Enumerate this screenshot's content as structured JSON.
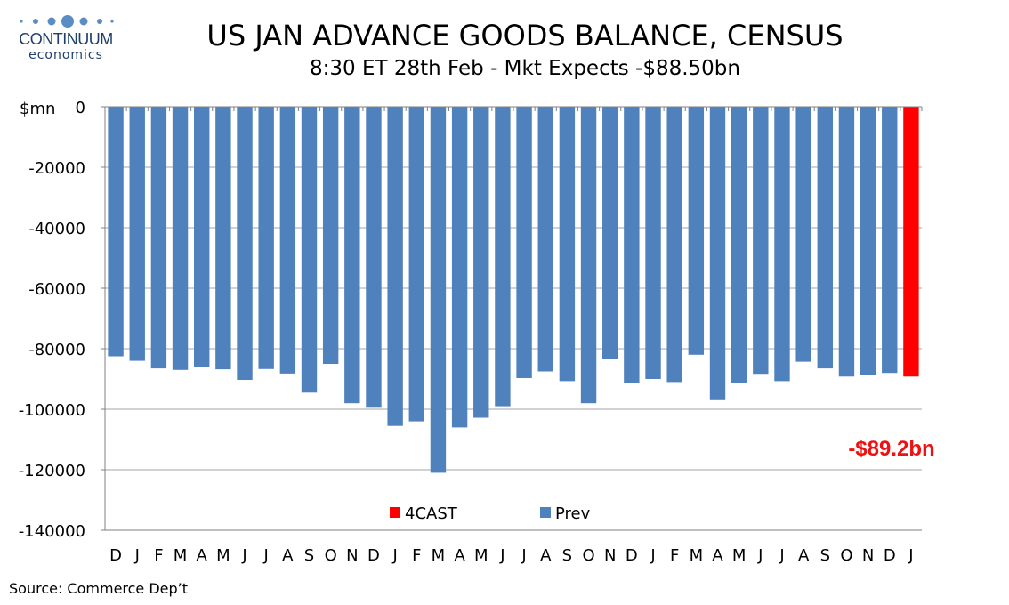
{
  "logo": {
    "word": "CONTINUUM",
    "sub": "economics",
    "dot_color": "#5b8cc4"
  },
  "header": {
    "title": "US JAN ADVANCE GOODS BALANCE, CENSUS",
    "subtitle": "8:30 ET 28th Feb - Mkt Expects -$88.50bn"
  },
  "footer": {
    "source": "Source: Commerce Dep’t"
  },
  "callout": {
    "text": "-$89.2bn",
    "color": "#ee1111"
  },
  "chart_data": {
    "type": "bar",
    "ylabel": "$mn",
    "ylim": [
      -140000,
      0
    ],
    "yticks": [
      0,
      -20000,
      -40000,
      -60000,
      -80000,
      -100000,
      -120000,
      -140000
    ],
    "grid": true,
    "legend_position": "bottom-center",
    "categories": [
      "D",
      "J",
      "F",
      "M",
      "A",
      "M",
      "J",
      "J",
      "A",
      "S",
      "O",
      "N",
      "D",
      "J",
      "F",
      "M",
      "A",
      "M",
      "J",
      "J",
      "A",
      "S",
      "O",
      "N",
      "D",
      "J",
      "F",
      "M",
      "A",
      "M",
      "J",
      "J",
      "A",
      "S",
      "O",
      "N",
      "D",
      "J"
    ],
    "series": [
      {
        "name": "Prev",
        "color": "#4f81bd",
        "values": [
          -82500,
          -84000,
          -86500,
          -87000,
          -86000,
          -86800,
          -90300,
          -86700,
          -88200,
          -94500,
          -85000,
          -98000,
          -99500,
          -105500,
          -104000,
          -121000,
          -106000,
          -102800,
          -99000,
          -89700,
          -87500,
          -90700,
          -98000,
          -83300,
          -91300,
          -90000,
          -91000,
          -82000,
          -97000,
          -91300,
          -88300,
          -90700,
          -84300,
          -86500,
          -89200,
          -88600,
          -88000,
          null
        ]
      },
      {
        "name": "4CAST",
        "color": "#ff0000",
        "values": [
          null,
          null,
          null,
          null,
          null,
          null,
          null,
          null,
          null,
          null,
          null,
          null,
          null,
          null,
          null,
          null,
          null,
          null,
          null,
          null,
          null,
          null,
          null,
          null,
          null,
          null,
          null,
          null,
          null,
          null,
          null,
          null,
          null,
          null,
          null,
          null,
          null,
          -89200
        ]
      }
    ]
  }
}
